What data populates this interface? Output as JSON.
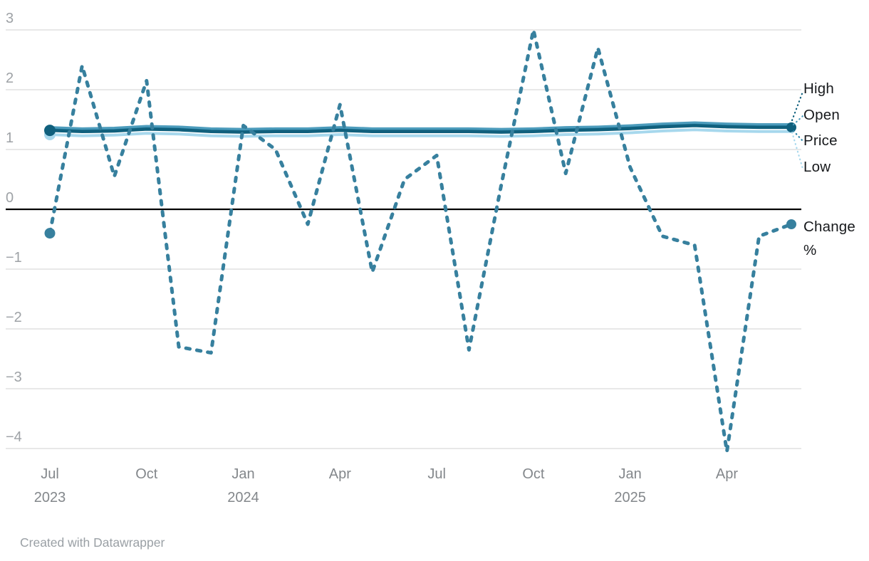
{
  "chart_data": {
    "type": "line",
    "title": "",
    "categories": [
      "Jul 2023",
      "Aug 2023",
      "Sep 2023",
      "Oct 2023",
      "Nov 2023",
      "Dec 2023",
      "Jan 2024",
      "Feb 2024",
      "Mar 2024",
      "Apr 2024",
      "May 2024",
      "Jun 2024",
      "Jul 2024",
      "Aug 2024",
      "Sep 2024",
      "Oct 2024",
      "Nov 2024",
      "Dec 2024",
      "Jan 2025",
      "Feb 2025",
      "Mar 2025",
      "Apr 2025",
      "May 2025",
      "Jun 2025"
    ],
    "ylim": [
      -4.4,
      3.1
    ],
    "grid": "horizontal",
    "legend_position": "right-edge-labels",
    "y_ticks": [
      {
        "value": 3,
        "label": "3"
      },
      {
        "value": 2,
        "label": "2"
      },
      {
        "value": 1,
        "label": "1"
      },
      {
        "value": 0,
        "label": "0"
      },
      {
        "value": -1,
        "label": "−1"
      },
      {
        "value": -2,
        "label": "−2"
      },
      {
        "value": -3,
        "label": "−3"
      },
      {
        "value": -4,
        "label": "−4"
      }
    ],
    "x_ticks": [
      {
        "index": 0,
        "label": "Jul",
        "year": "2023"
      },
      {
        "index": 3,
        "label": "Oct"
      },
      {
        "index": 6,
        "label": "Jan",
        "year": "2024"
      },
      {
        "index": 9,
        "label": "Apr"
      },
      {
        "index": 12,
        "label": "Jul"
      },
      {
        "index": 15,
        "label": "Oct"
      },
      {
        "index": 18,
        "label": "Jan",
        "year": "2025"
      },
      {
        "index": 21,
        "label": "Apr"
      }
    ],
    "series": [
      {
        "id": "low",
        "name": "Low",
        "color": "#a7d8ed",
        "width": 4,
        "style": "solid",
        "values": [
          1.25,
          1.23,
          1.24,
          1.27,
          1.26,
          1.23,
          1.22,
          1.23,
          1.23,
          1.25,
          1.23,
          1.23,
          1.23,
          1.23,
          1.22,
          1.23,
          1.25,
          1.26,
          1.28,
          1.31,
          1.33,
          1.31,
          1.3,
          1.3
        ],
        "dots": [
          {
            "at": "start",
            "r": 8
          }
        ]
      },
      {
        "id": "high",
        "name": "High",
        "color": "#4d9cbc",
        "width": 3.5,
        "style": "solid",
        "values": [
          1.37,
          1.35,
          1.36,
          1.39,
          1.38,
          1.35,
          1.34,
          1.35,
          1.35,
          1.37,
          1.35,
          1.35,
          1.35,
          1.35,
          1.34,
          1.35,
          1.37,
          1.38,
          1.4,
          1.43,
          1.45,
          1.43,
          1.42,
          1.42
        ]
      },
      {
        "id": "open",
        "name": "Open",
        "color": "#2e86a9",
        "width": 4,
        "style": "solid",
        "values": [
          1.33,
          1.31,
          1.32,
          1.35,
          1.34,
          1.31,
          1.3,
          1.31,
          1.31,
          1.33,
          1.31,
          1.31,
          1.31,
          1.31,
          1.3,
          1.31,
          1.33,
          1.34,
          1.36,
          1.39,
          1.41,
          1.39,
          1.38,
          1.38
        ]
      },
      {
        "id": "price",
        "name": "Price",
        "color": "#10607d",
        "width": 4.5,
        "style": "solid",
        "values": [
          1.32,
          1.3,
          1.31,
          1.34,
          1.33,
          1.3,
          1.29,
          1.3,
          1.3,
          1.32,
          1.3,
          1.3,
          1.3,
          1.3,
          1.29,
          1.3,
          1.32,
          1.33,
          1.35,
          1.38,
          1.4,
          1.38,
          1.37,
          1.37
        ],
        "dots": [
          {
            "at": "start",
            "r": 8
          },
          {
            "at": "end",
            "r": 7
          }
        ]
      },
      {
        "id": "change",
        "name": "Change %",
        "color": "#37809e",
        "width": 5,
        "style": "dashed",
        "values": [
          -0.4,
          2.4,
          0.55,
          2.15,
          -2.3,
          -2.4,
          1.4,
          1.0,
          -0.25,
          1.75,
          -1.05,
          0.5,
          0.9,
          -2.35,
          0.4,
          3.0,
          0.6,
          2.7,
          0.7,
          -0.45,
          -0.6,
          -4.05,
          -0.45,
          -0.25
        ],
        "dots": [
          {
            "at": "start",
            "r": 7.5
          },
          {
            "at": "end",
            "r": 7
          }
        ]
      }
    ]
  },
  "end_labels": {
    "high": "High",
    "open": "Open",
    "price": "Price",
    "low": "Low",
    "change": "Change %"
  },
  "footer": {
    "credit": "Created with Datawrapper"
  },
  "colors": {
    "price_dark": "#10607d",
    "open_medium": "#2e86a9",
    "high_teal": "#4d9cbc",
    "low_light": "#a7d8ed",
    "change_line": "#37809e",
    "grid": "#e8e8e8",
    "zero_line": "#000000",
    "y_label": "#9ea2a6",
    "x_label": "#83878b"
  }
}
